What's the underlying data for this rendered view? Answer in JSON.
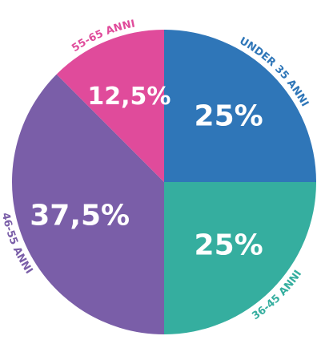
{
  "chart_data": {
    "type": "pie",
    "categories": [
      "UNDER 35 ANNI",
      "36-45 ANNI",
      "46-55 ANNI",
      "55-65 ANNI"
    ],
    "values": [
      25,
      25,
      37.5,
      12.5
    ],
    "value_labels": [
      "25%",
      "25%",
      "37,5%",
      "12,5%"
    ],
    "colors": [
      "#2f76b8",
      "#35ae9f",
      "#7a5ea8",
      "#e04b9b"
    ]
  }
}
